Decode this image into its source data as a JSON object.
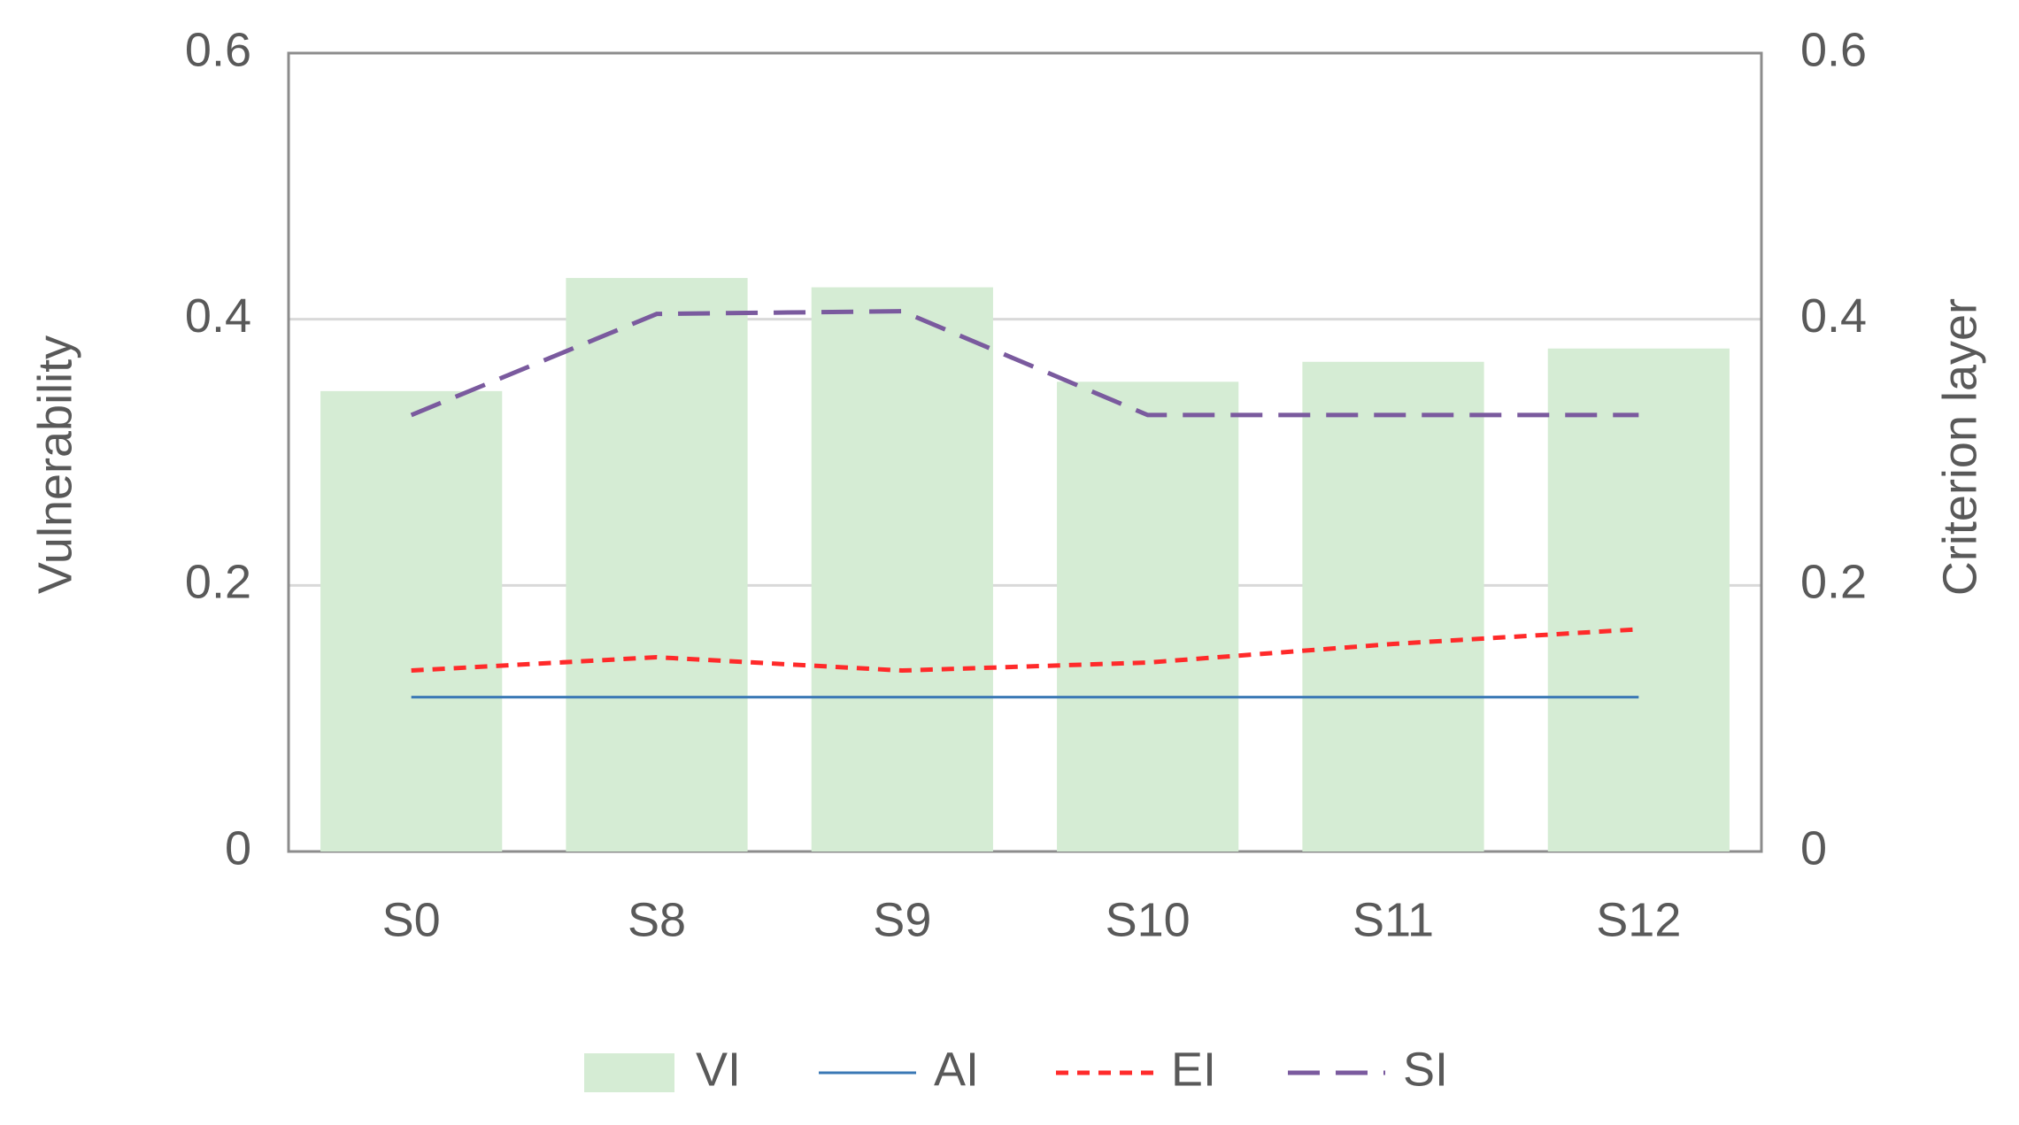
{
  "chart_data": {
    "type": "bar-line",
    "y_label": "Vulnerability",
    "y2_label": "Criterion layer",
    "categories": [
      "S0",
      "S8",
      "S9",
      "S10",
      "S11",
      "S12"
    ],
    "series": [
      {
        "name": "VI",
        "type": "bar",
        "axis": "y",
        "color": "#d5ecd4",
        "values": [
          0.346,
          0.431,
          0.424,
          0.353,
          0.368,
          0.378
        ]
      },
      {
        "name": "AI",
        "type": "line",
        "axis": "y2",
        "color": "#3a78b5",
        "dash": "solid",
        "values": [
          0.116,
          0.116,
          0.116,
          0.116,
          0.116,
          0.116
        ]
      },
      {
        "name": "EI",
        "type": "line",
        "axis": "y2",
        "color": "#ff2a2a",
        "dash": "short",
        "values": [
          0.136,
          0.146,
          0.136,
          0.142,
          0.156,
          0.167
        ]
      },
      {
        "name": "SI",
        "type": "line",
        "axis": "y2",
        "color": "#7a5a9e",
        "dash": "long",
        "values": [
          0.328,
          0.404,
          0.406,
          0.328,
          0.328,
          0.328
        ]
      }
    ],
    "ylim": [
      0,
      0.6
    ],
    "yticks": [
      0,
      0.2,
      0.4,
      0.6
    ],
    "y2lim": [
      0,
      0.6
    ],
    "y2ticks": [
      0,
      0.2,
      0.4,
      0.6
    ],
    "grid": true,
    "legend": "bottom"
  }
}
